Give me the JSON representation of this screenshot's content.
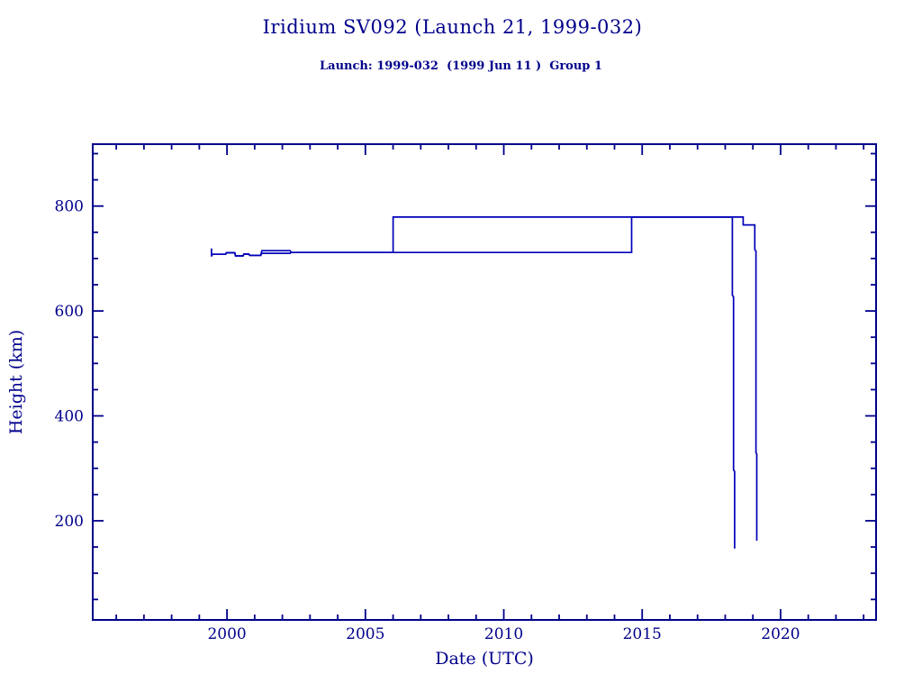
{
  "header": {
    "title": "Iridium SV092 (Launch 21, 1999-032)",
    "subtitle": "Launch: 1999-032  (1999 Jun 11 )  Group 1"
  },
  "chart_data": {
    "type": "line",
    "title": "Iridium SV092 (Launch 21, 1999-032)",
    "subtitle": "Launch: 1999-032  (1999 Jun 11 )  Group 1",
    "xlabel": "Date (UTC)",
    "ylabel": "Height (km)",
    "xlim": [
      1995.15,
      2023.45
    ],
    "ylim": [
      11,
      918
    ],
    "x_major_ticks": [
      2000,
      2005,
      2010,
      2015,
      2020
    ],
    "x_tick_labels": [
      "2000",
      "2005",
      "2010",
      "2015",
      "2020"
    ],
    "x_minor_step": 1,
    "y_major_ticks": [
      200,
      400,
      600,
      800
    ],
    "y_tick_labels": [
      "200",
      "400",
      "600",
      "800"
    ],
    "y_minor_step": 50,
    "grid": false,
    "legend": "none",
    "axis_color": "#00008b",
    "line_color": "#0000b8",
    "background_color": "#ffffff",
    "series": [
      {
        "name": "perigee-height-km",
        "points": [
          [
            1999.44,
            719
          ],
          [
            1999.44,
            704
          ],
          [
            1999.47,
            708
          ],
          [
            1999.95,
            708
          ],
          [
            1999.98,
            711
          ],
          [
            2000.28,
            711
          ],
          [
            2000.31,
            705
          ],
          [
            2000.58,
            705
          ],
          [
            2000.61,
            708.5
          ],
          [
            2000.79,
            708.5
          ],
          [
            2000.82,
            706
          ],
          [
            2001.22,
            706
          ],
          [
            2001.26,
            710
          ],
          [
            2002.28,
            710
          ],
          [
            2002.32,
            711.5
          ],
          [
            2014.62,
            711.5
          ],
          [
            2014.62,
            779
          ],
          [
            2018.26,
            779
          ],
          [
            2018.26,
            630
          ],
          [
            2018.3,
            627
          ],
          [
            2018.3,
            297
          ],
          [
            2018.34,
            294
          ],
          [
            2018.34,
            147
          ]
        ]
      },
      {
        "name": "apogee-height-km",
        "points": [
          [
            1999.47,
            708
          ],
          [
            1999.95,
            708
          ],
          [
            1999.98,
            711
          ],
          [
            2000.28,
            711
          ],
          [
            2000.31,
            705
          ],
          [
            2000.58,
            705
          ],
          [
            2000.61,
            708.5
          ],
          [
            2000.79,
            708.5
          ],
          [
            2000.82,
            706
          ],
          [
            2001.22,
            706
          ],
          [
            2001.26,
            715
          ],
          [
            2002.28,
            715
          ],
          [
            2002.32,
            711.5
          ],
          [
            2006.0,
            711.5
          ],
          [
            2006.0,
            779
          ],
          [
            2018.65,
            779
          ],
          [
            2018.65,
            764
          ],
          [
            2019.07,
            764
          ],
          [
            2019.07,
            717
          ],
          [
            2019.11,
            714
          ],
          [
            2019.11,
            330
          ],
          [
            2019.14,
            327
          ],
          [
            2019.14,
            162
          ]
        ]
      }
    ]
  }
}
